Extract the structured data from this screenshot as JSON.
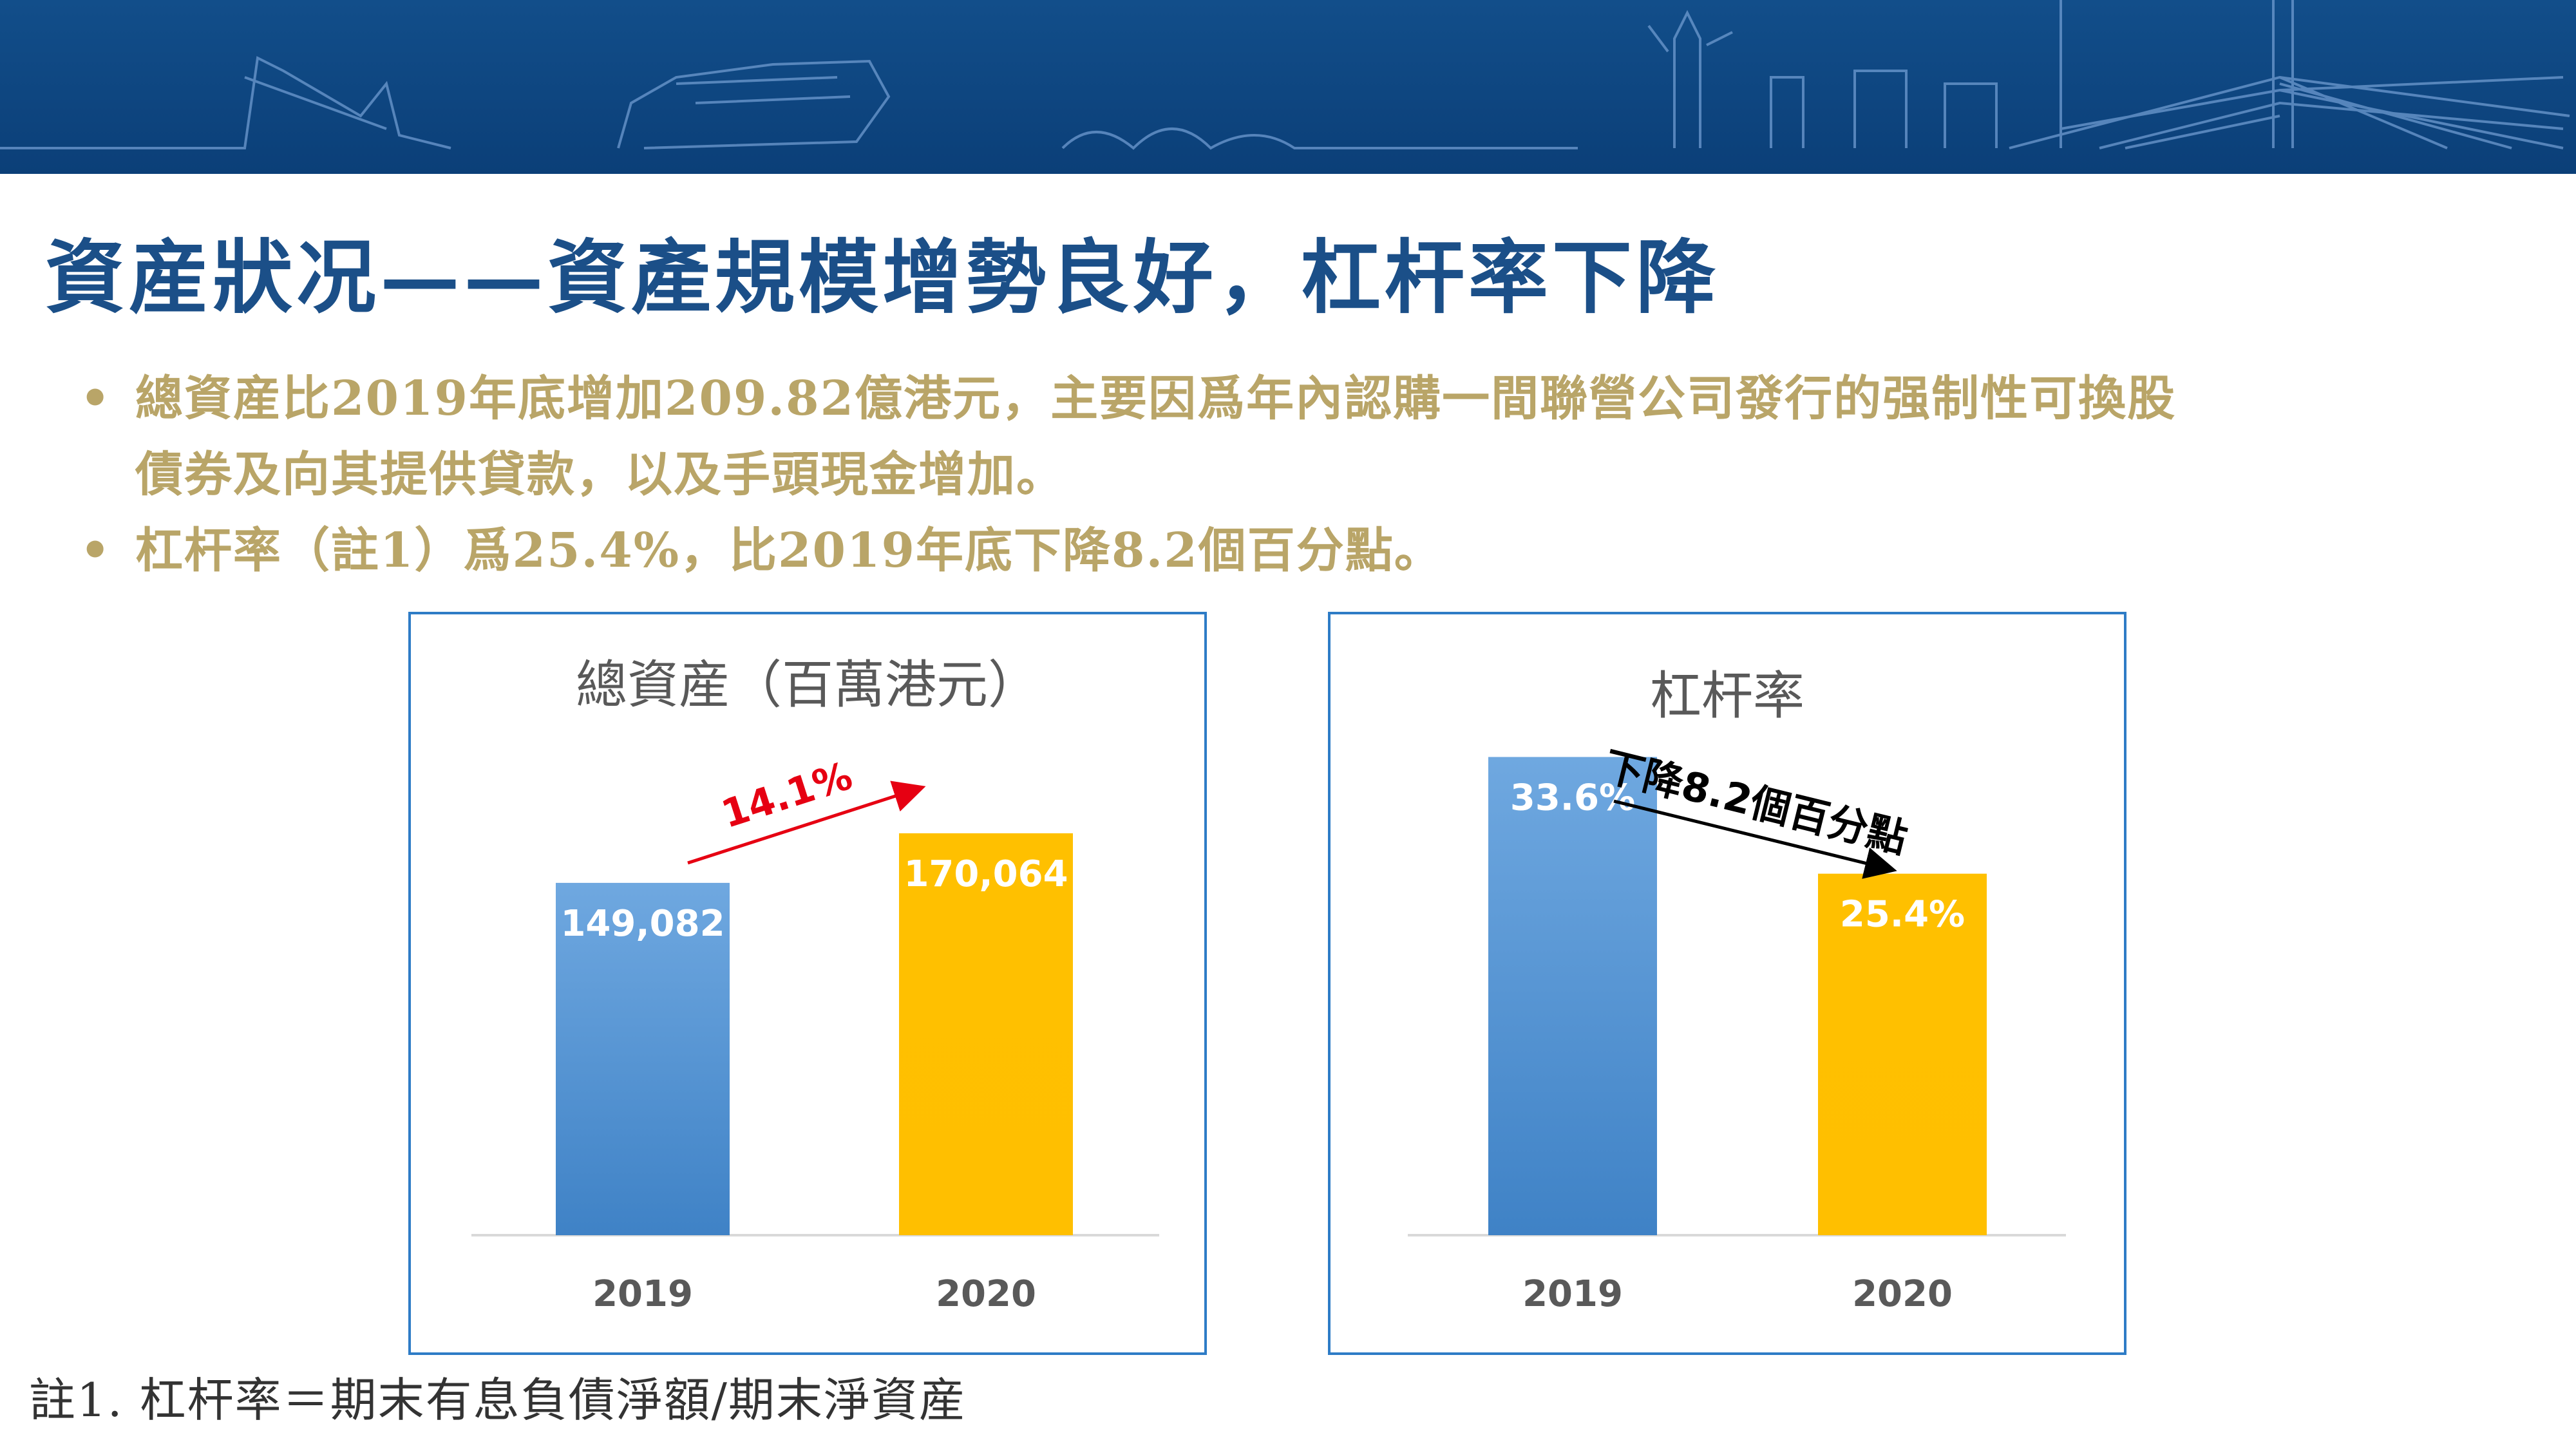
{
  "slide": {
    "title": "資産狀况——資產規模增勢良好，杠杆率下降",
    "bullets": [
      {
        "lines": [
          "總資産比2019年底增加209.82億港元，主要因爲年內認購一間聯營公司發行的强制性可換股",
          "債券及向其提供貸款，以及手頭現金增加。"
        ]
      },
      {
        "lines": [
          "杠杆率（註1）爲25.4%，比2019年底下降8.2個百分點。"
        ]
      }
    ],
    "footnote": "註1. 杠杆率＝期末有息負債淨額/期末淨資産",
    "colors": {
      "banner": "#0b3f78",
      "title": "#1b4f88",
      "bullet": "#b9a568",
      "series_2019": "#5b9bd5",
      "series_2020": "#ffc000",
      "border": "#2e7cc6"
    }
  },
  "chart_data": [
    {
      "type": "bar",
      "title": "總資産（百萬港元）",
      "categories": [
        "2019",
        "2020"
      ],
      "values": [
        149082,
        170064
      ],
      "value_labels": [
        "149,082",
        "170,064"
      ],
      "ylim": [
        0,
        215000
      ],
      "annotation": {
        "text": "14.1%",
        "color": "#e60012",
        "direction": "up"
      }
    },
    {
      "type": "bar",
      "title": "杠杆率",
      "categories": [
        "2019",
        "2020"
      ],
      "values": [
        33.6,
        25.4
      ],
      "value_labels": [
        "33.6%",
        "25.4%"
      ],
      "ylim": [
        0,
        40
      ],
      "annotation": {
        "text": "下降8.2個百分點",
        "color": "#000000",
        "direction": "down"
      }
    }
  ]
}
